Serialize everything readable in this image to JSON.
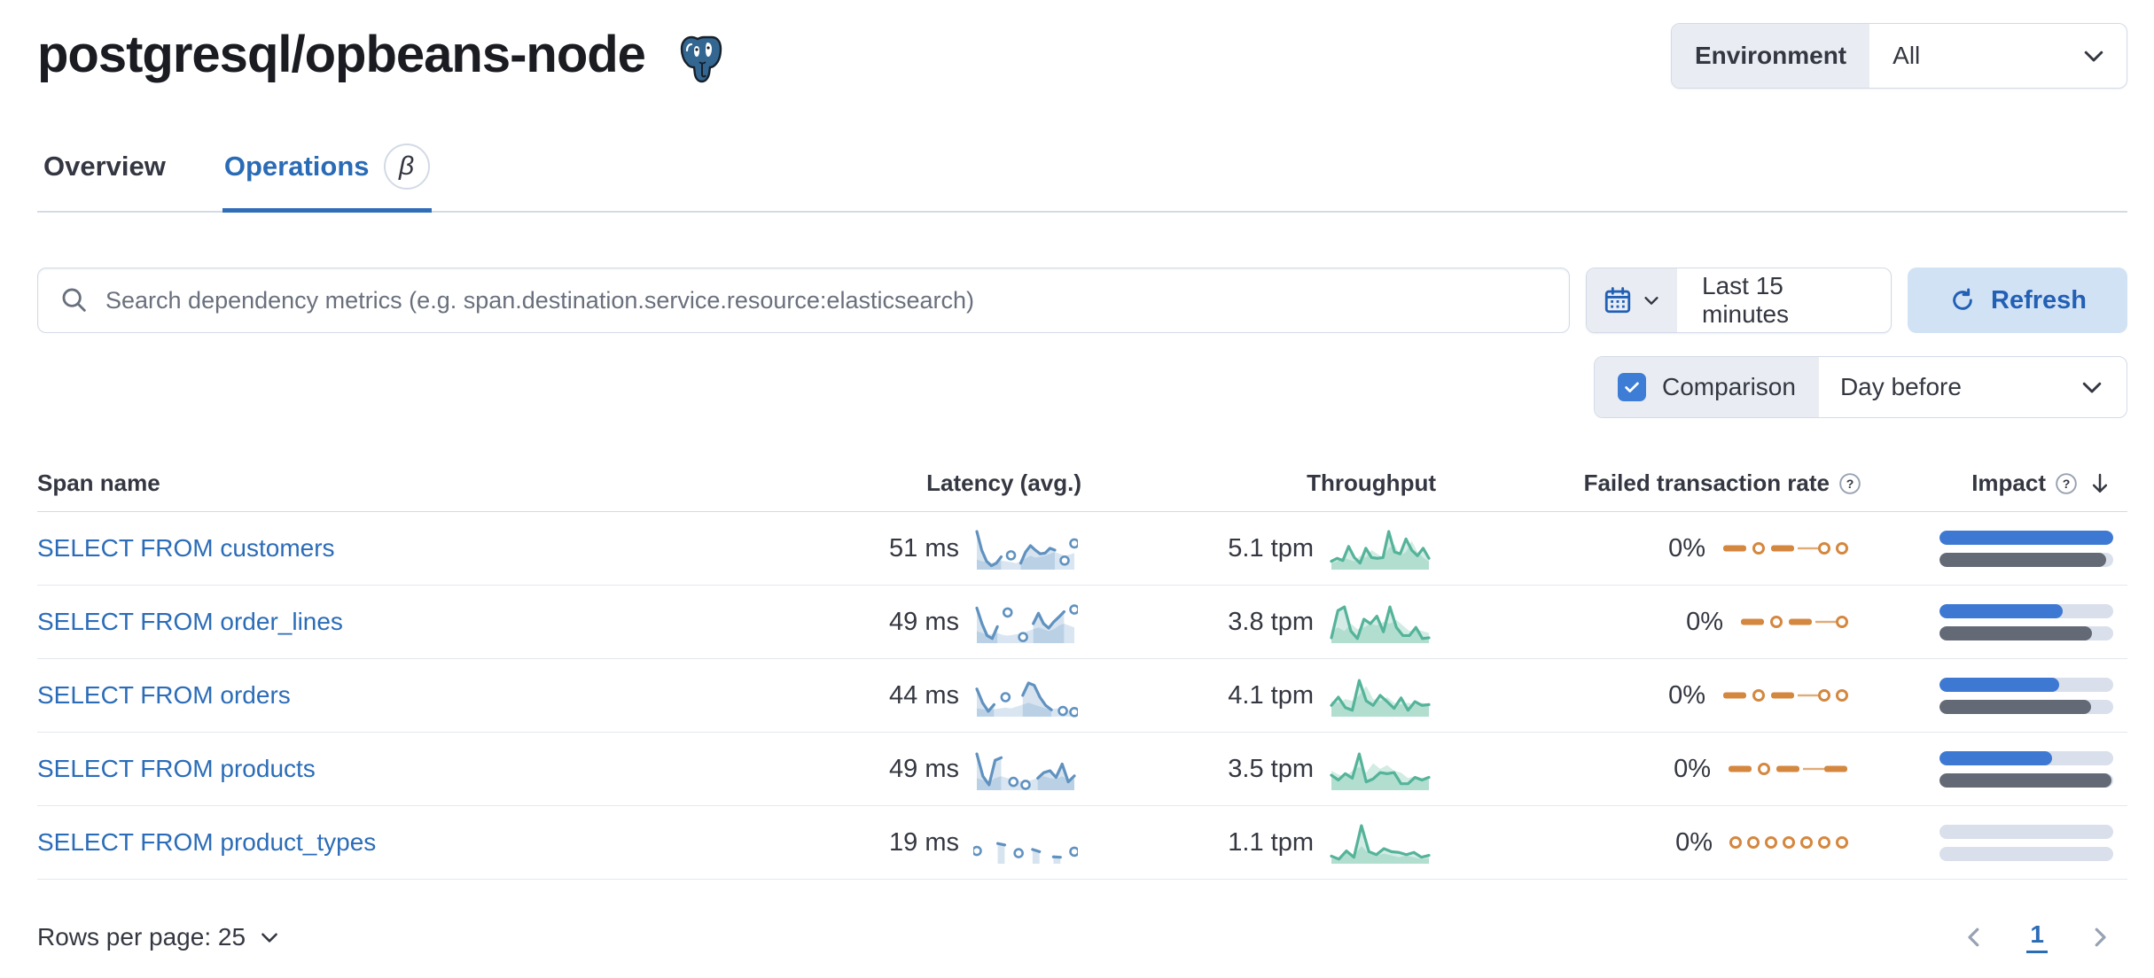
{
  "header": {
    "title": "postgresql/opbeans-node",
    "environment_label": "Environment",
    "environment_value": "All"
  },
  "tabs": [
    {
      "label": "Overview",
      "active": false
    },
    {
      "label": "Operations",
      "active": true,
      "beta": "β"
    }
  ],
  "controls": {
    "search_placeholder": "Search dependency metrics (e.g. span.destination.service.resource:elasticsearch)",
    "time_range": "Last 15 minutes",
    "refresh_label": "Refresh",
    "comparison_label": "Comparison",
    "comparison_checked": true,
    "comparison_value": "Day before"
  },
  "table": {
    "columns": {
      "span_name": "Span name",
      "latency": "Latency (avg.)",
      "throughput": "Throughput",
      "failed_rate": "Failed transaction rate",
      "impact": "Impact"
    },
    "rows": [
      {
        "span_name": "SELECT FROM customers",
        "latency": "51 ms",
        "throughput": "5.1 tpm",
        "failed_rate": "0%",
        "impact": 1.0,
        "impact_prev": 0.96,
        "latency_spark": [
          1,
          0.5,
          0.2,
          0.08,
          0.15,
          0.32,
          null,
          0.36,
          null,
          0.15,
          0.45,
          0.62,
          0.5,
          0.4,
          0.42,
          0.55,
          0.5,
          null,
          0.22,
          null,
          0.68
        ],
        "latency_comp": [
          0.25,
          0.2,
          0.18,
          0.15,
          0.18,
          0.22,
          0.2,
          0.18,
          0.15,
          0.2,
          0.28,
          0.35,
          0.3,
          0.32,
          0.35,
          0.4,
          0.45,
          0.4,
          0.35,
          0.38,
          0.42
        ],
        "throughput_spark": [
          0.2,
          0.28,
          0.22,
          0.6,
          0.3,
          0.15,
          0.55,
          0.3,
          0.28,
          0.3,
          1.0,
          0.45,
          0.4,
          0.8,
          0.5,
          0.35,
          0.55,
          0.28
        ],
        "throughput_comp": [
          0.15,
          0.2,
          0.3,
          0.25,
          0.2,
          0.35,
          0.3,
          0.5,
          0.4,
          0.3,
          0.55,
          0.65,
          0.35,
          0.45,
          0.75,
          0.45,
          0.3,
          0.2
        ],
        "failed_spark": [
          "d",
          "o",
          "d",
          "-",
          "o",
          "o"
        ]
      },
      {
        "span_name": "SELECT FROM order_lines",
        "latency": "49 ms",
        "throughput": "3.8 tpm",
        "failed_rate": "0%",
        "impact": 0.71,
        "impact_prev": 0.88,
        "latency_spark": [
          0.92,
          0.5,
          0.18,
          0.1,
          0.42,
          null,
          0.8,
          null,
          null,
          0.14,
          null,
          0.5,
          0.78,
          0.5,
          0.38,
          0.55,
          0.68,
          0.82,
          null,
          0.88
        ],
        "latency_comp": [
          0.3,
          0.25,
          0.2,
          0.22,
          0.25,
          0.2,
          0.18,
          0.2,
          0.22,
          0.25,
          0.3,
          0.35,
          0.4,
          0.35,
          0.3,
          0.35,
          0.45,
          0.5,
          0.45,
          0.4
        ],
        "throughput_spark": [
          0.12,
          0.85,
          0.95,
          0.3,
          0.1,
          0.62,
          0.5,
          0.7,
          0.28,
          0.95,
          0.4,
          0.18,
          0.18,
          0.4,
          0.1,
          0.12
        ],
        "throughput_comp": [
          0.3,
          0.4,
          0.3,
          0.5,
          0.35,
          0.4,
          0.5,
          0.45,
          0.55,
          0.5,
          0.6,
          0.45,
          0.3,
          0.35,
          0.3,
          0.25
        ],
        "failed_spark": [
          "d",
          "o",
          "d",
          "-",
          "o"
        ]
      },
      {
        "span_name": "SELECT FROM orders",
        "latency": "44 ms",
        "throughput": "4.1 tpm",
        "failed_rate": "0%",
        "impact": 0.69,
        "impact_prev": 0.87,
        "latency_spark": [
          0.72,
          0.35,
          0.12,
          0.3,
          null,
          0.5,
          null,
          null,
          0.55,
          0.88,
          0.82,
          0.5,
          0.28,
          0.16,
          null,
          0.13,
          null,
          0.1
        ],
        "latency_comp": [
          0.2,
          0.18,
          0.15,
          0.18,
          0.2,
          0.22,
          0.2,
          0.25,
          0.3,
          0.35,
          0.3,
          0.25,
          0.2,
          0.18,
          0.2,
          0.18,
          0.15,
          0.15
        ],
        "throughput_spark": [
          0.28,
          0.5,
          0.22,
          0.15,
          0.95,
          0.4,
          0.28,
          0.55,
          0.38,
          0.2,
          0.48,
          0.15,
          0.38,
          0.28,
          0.3
        ],
        "throughput_comp": [
          0.4,
          0.35,
          0.45,
          0.4,
          0.55,
          0.8,
          0.45,
          0.4,
          0.5,
          0.35,
          0.3,
          0.35,
          0.3,
          0.35,
          0.3
        ],
        "failed_spark": [
          "d",
          "o",
          "d",
          "-",
          "o",
          "o"
        ]
      },
      {
        "span_name": "SELECT FROM products",
        "latency": "49 ms",
        "throughput": "3.5 tpm",
        "failed_rate": "0%",
        "impact": 0.65,
        "impact_prev": 0.99,
        "latency_spark": [
          0.95,
          0.35,
          0.12,
          0.78,
          0.85,
          null,
          0.2,
          null,
          0.12,
          null,
          0.3,
          0.45,
          0.5,
          0.32,
          0.68,
          0.2,
          0.36
        ],
        "latency_comp": [
          0.3,
          0.25,
          0.2,
          0.3,
          0.35,
          0.3,
          0.25,
          0.22,
          0.2,
          0.25,
          0.3,
          0.35,
          0.3,
          0.28,
          0.35,
          0.25,
          0.28
        ],
        "throughput_spark": [
          0.38,
          0.25,
          0.42,
          0.3,
          0.95,
          0.2,
          0.28,
          0.45,
          0.42,
          0.45,
          0.15,
          0.15,
          0.32,
          0.25,
          0.32
        ],
        "throughput_comp": [
          0.5,
          0.4,
          0.35,
          0.5,
          0.6,
          0.45,
          0.7,
          0.55,
          0.65,
          0.5,
          0.45,
          0.3,
          0.35,
          0.3,
          0.25
        ],
        "failed_spark": [
          "d",
          "o",
          "d",
          "-",
          "d"
        ]
      },
      {
        "span_name": "SELECT FROM product_types",
        "latency": "19 ms",
        "throughput": "1.1 tpm",
        "failed_rate": "0%",
        "impact": 0,
        "impact_prev": 0,
        "latency_spark": [
          0.32,
          null,
          null,
          0.52,
          0.48,
          null,
          0.26,
          null,
          0.36,
          0.3,
          null,
          0.16,
          0.15,
          null,
          0.3
        ],
        "latency_comp": null,
        "throughput_spark": [
          0.18,
          0.1,
          0.32,
          0.15,
          1.0,
          0.3,
          0.22,
          0.38,
          0.3,
          0.28,
          0.22,
          0.28,
          0.15,
          0.2
        ],
        "throughput_comp": [
          0.1,
          0.15,
          0.3,
          0.2,
          0.45,
          0.25,
          0.2,
          0.25,
          0.2,
          0.15,
          0.2,
          0.15,
          0.1,
          0.12
        ],
        "failed_spark": [
          "o",
          "o",
          "o",
          "o",
          "o",
          "o",
          "o"
        ]
      }
    ]
  },
  "footer": {
    "rows_per_page_label": "Rows per page: 25",
    "page": "1"
  },
  "colors": {
    "link_blue": "#2b6cb8",
    "vis_blue": "#6092C0",
    "vis_blue_comp": "#d9e6f2",
    "vis_green": "#54B399",
    "vis_green_comp": "#d2ecE3",
    "vis_orange": "#d4873f",
    "impact_blue": "#3d79d3",
    "impact_gray": "#636a76",
    "track": "#d9dfeb"
  }
}
